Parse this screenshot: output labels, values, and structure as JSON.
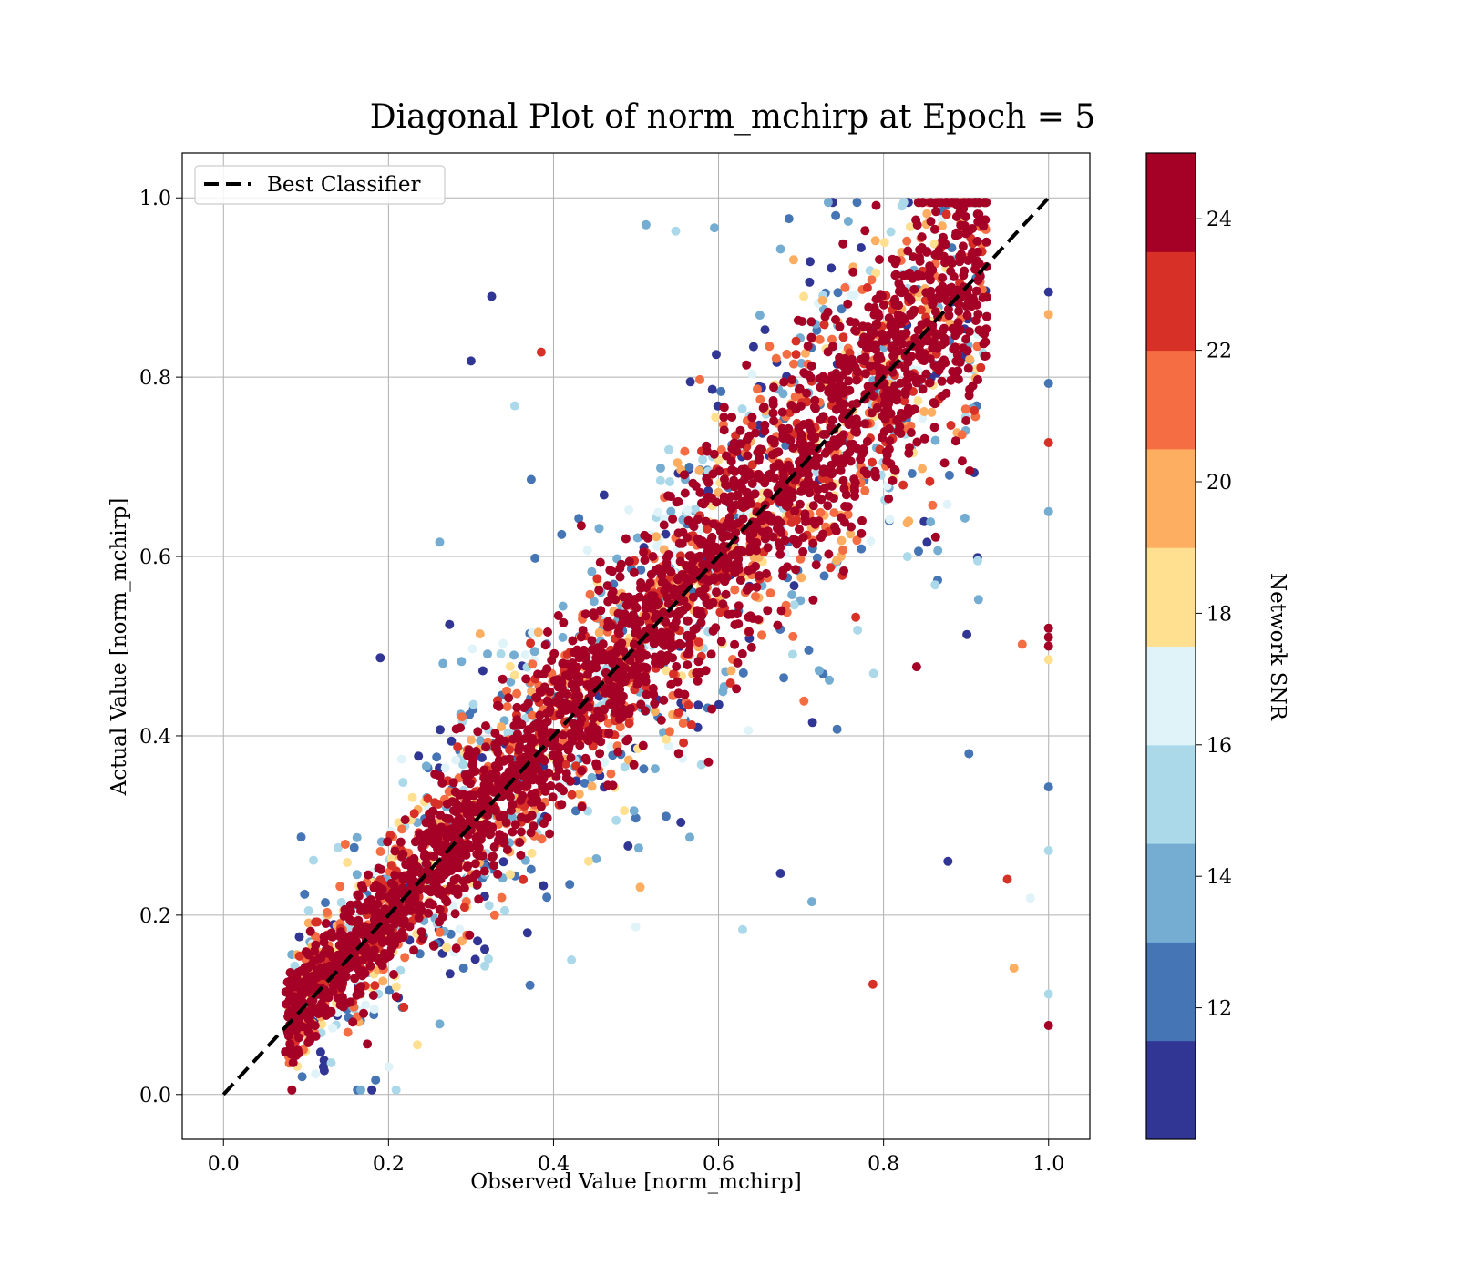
{
  "chart_data": {
    "type": "scatter",
    "title": "Diagonal Plot of norm_mchirp at Epoch = 5",
    "xlabel": "Observed Value [norm_mchirp]",
    "ylabel": "Actual Value [norm_mchirp]",
    "xlim": [
      -0.05,
      1.05
    ],
    "ylim": [
      -0.05,
      1.05
    ],
    "xticks": [
      "0.0",
      "0.2",
      "0.4",
      "0.6",
      "0.8",
      "1.0"
    ],
    "yticks": [
      "0.0",
      "0.2",
      "0.4",
      "0.6",
      "0.8",
      "1.0"
    ],
    "grid": true,
    "legend": {
      "position": "top-left",
      "entries": [
        {
          "label": "Best Classifier",
          "style": "black dashed line"
        }
      ]
    },
    "reference_line": {
      "from": [
        0,
        0
      ],
      "to": [
        1,
        1
      ],
      "color": "#000000",
      "dash": true
    },
    "colorbar": {
      "label": "Network SNR",
      "range": [
        10,
        25
      ],
      "ticks": [
        "12",
        "14",
        "16",
        "18",
        "20",
        "22",
        "24"
      ],
      "colormap": "RdYlBu_r",
      "bins": 10,
      "bin_colors": [
        "#313695",
        "#4575b4",
        "#74add1",
        "#abd9e9",
        "#e0f3f8",
        "#fee090",
        "#fdae61",
        "#f46d43",
        "#d73027",
        "#a50026"
      ]
    },
    "point_cloud": {
      "description_range_x": [
        0.07,
        1.0
      ],
      "relation": "actual ≈ observed with spread widening toward higher values; high-SNR points concentrated along the diagonal",
      "outliers_at_x_1": [
        0.895,
        0.87,
        0.793,
        0.727,
        0.65,
        0.52,
        0.51,
        0.5,
        0.485,
        0.343,
        0.272,
        0.112,
        0.077
      ],
      "notable_points": [
        {
          "x": 0.325,
          "y": 0.89,
          "snr": 11
        },
        {
          "x": 0.3,
          "y": 0.818,
          "snr": 11
        },
        {
          "x": 0.19,
          "y": 0.487,
          "snr": 11
        },
        {
          "x": 0.878,
          "y": 0.26,
          "snr": 11
        },
        {
          "x": 0.95,
          "y": 0.24,
          "snr": 23
        },
        {
          "x": 0.787,
          "y": 0.123,
          "snr": 23
        },
        {
          "x": 0.713,
          "y": 0.215,
          "snr": 14
        },
        {
          "x": 0.958,
          "y": 0.141,
          "snr": 20
        },
        {
          "x": 0.978,
          "y": 0.219,
          "snr": 16
        },
        {
          "x": 0.968,
          "y": 0.502,
          "snr": 21
        },
        {
          "x": 0.84,
          "y": 0.477,
          "snr": 25
        },
        {
          "x": 0.915,
          "y": 0.552,
          "snr": 14
        },
        {
          "x": 0.262,
          "y": 0.616,
          "snr": 14
        },
        {
          "x": 0.353,
          "y": 0.768,
          "snr": 15
        },
        {
          "x": 0.385,
          "y": 0.828,
          "snr": 23
        },
        {
          "x": 0.512,
          "y": 0.97,
          "snr": 14
        },
        {
          "x": 0.548,
          "y": 0.963,
          "snr": 15
        }
      ]
    }
  }
}
